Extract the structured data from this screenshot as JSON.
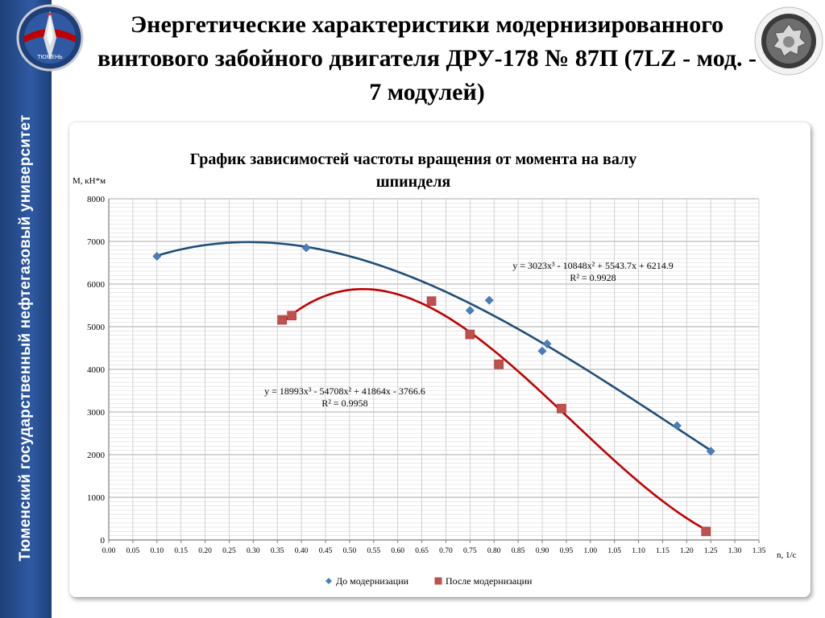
{
  "slide": {
    "title": "Энергетические характеристики модернизированного винтового забойного двигателя ДРУ-178 № 87П (7LZ - мод. - 7 модулей)",
    "side_label": "Тюменский государственный нефтегазовый университет",
    "logo_text": "ТЮМЕНЬ"
  },
  "colors": {
    "sidebar": "#2a4f8f",
    "series_before": "#1f4e79",
    "series_before_marker": "#4a7ebb",
    "series_after": "#c00000",
    "series_after_marker": "#c0504d"
  },
  "chart_data": {
    "type": "scatter",
    "title": "График зависимостей частоты вращения от момента на валу шпинделя",
    "ylabel": "М, кН*м",
    "xlabel": "n, 1/c",
    "xlim": [
      0,
      1.35
    ],
    "ylim": [
      0,
      8000
    ],
    "x_ticks": [
      "0.00",
      "0.05",
      "0.10",
      "0.15",
      "0.20",
      "0.25",
      "0.30",
      "0.35",
      "0.40",
      "0.45",
      "0.50",
      "0.55",
      "0.60",
      "0.65",
      "0.70",
      "0.75",
      "0.80",
      "0.85",
      "0.90",
      "0.95",
      "1.00",
      "1.05",
      "1.10",
      "1.15",
      "1.20",
      "1.25",
      "1.30",
      "1.35"
    ],
    "y_ticks": [
      "0",
      "1000",
      "2000",
      "3000",
      "4000",
      "5000",
      "6000",
      "7000",
      "8000"
    ],
    "grid": true,
    "legend_position": "bottom",
    "series": [
      {
        "name": "До модернизации",
        "marker": "diamond",
        "points": [
          [
            0.1,
            6650
          ],
          [
            0.41,
            6850
          ],
          [
            0.75,
            5380
          ],
          [
            0.79,
            5620
          ],
          [
            0.9,
            4430
          ],
          [
            0.91,
            4600
          ],
          [
            1.18,
            2680
          ],
          [
            1.25,
            2080
          ]
        ],
        "trendline": {
          "type": "poly3",
          "coeffs": [
            3023,
            -10848,
            5543.7,
            6214.9
          ],
          "x_range": [
            0.1,
            1.25
          ]
        },
        "equation": "y = 3023x³ - 10848x² + 5543.7x + 6214.9",
        "r2": "R² = 0.9928"
      },
      {
        "name": "После модернизации",
        "marker": "square",
        "points": [
          [
            0.36,
            5160
          ],
          [
            0.38,
            5260
          ],
          [
            0.67,
            5600
          ],
          [
            0.75,
            4820
          ],
          [
            0.81,
            4120
          ],
          [
            0.94,
            3080
          ],
          [
            1.24,
            200
          ]
        ],
        "trendline": {
          "type": "poly3",
          "coeffs": [
            18993,
            -54708,
            41864,
            -3766.6
          ],
          "x_range": [
            0.36,
            1.24
          ]
        },
        "equation": "y = 18993x³ - 54708x² + 41864x - 3766.6",
        "r2": "R² = 0.9958"
      }
    ]
  }
}
